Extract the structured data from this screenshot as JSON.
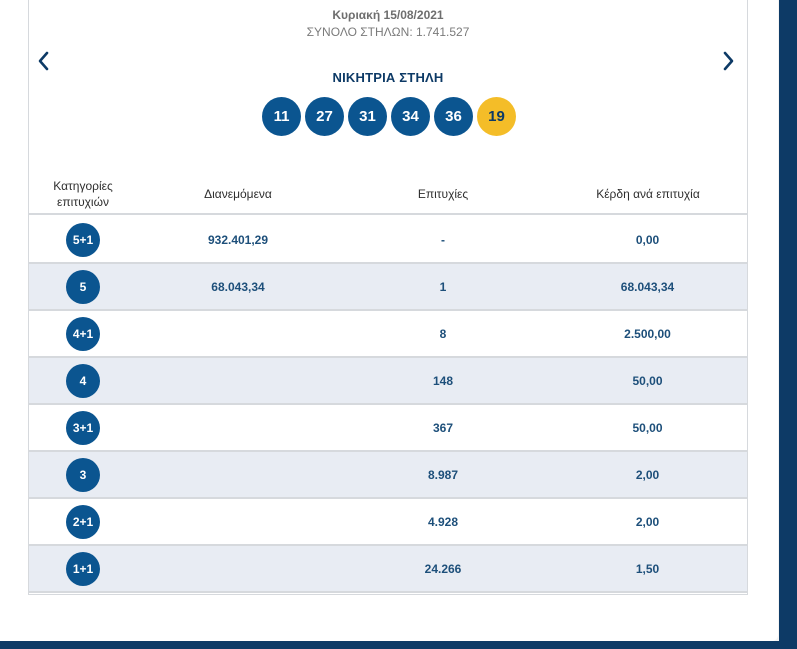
{
  "header": {
    "draw_date": "Κυριακή 15/08/2021",
    "total_columns": "ΣΥΝΟΛΟ ΣΤΗΛΩΝ: 1.741.527",
    "winning_title": "ΝΙΚΗΤΡΙΑ ΣΤΗΛΗ"
  },
  "winning_numbers": [
    "11",
    "27",
    "31",
    "34",
    "36"
  ],
  "bonus_number": "19",
  "table": {
    "headers": {
      "category": "Κατηγορίες επιτυχιών",
      "distributed": "Διανεμόμενα",
      "winners": "Επιτυχίες",
      "prize_per_winner": "Κέρδη ανά επιτυχία"
    },
    "rows": [
      {
        "category": "5+1",
        "distributed": "932.401,29",
        "winners": "-",
        "prize": "0,00"
      },
      {
        "category": "5",
        "distributed": "68.043,34",
        "winners": "1",
        "prize": "68.043,34"
      },
      {
        "category": "4+1",
        "distributed": "",
        "winners": "8",
        "prize": "2.500,00"
      },
      {
        "category": "4",
        "distributed": "",
        "winners": "148",
        "prize": "50,00"
      },
      {
        "category": "3+1",
        "distributed": "",
        "winners": "367",
        "prize": "50,00"
      },
      {
        "category": "3",
        "distributed": "",
        "winners": "8.987",
        "prize": "2,00"
      },
      {
        "category": "2+1",
        "distributed": "",
        "winners": "4.928",
        "prize": "2,00"
      },
      {
        "category": "1+1",
        "distributed": "",
        "winners": "24.266",
        "prize": "1,50"
      }
    ]
  },
  "icons": {
    "prev": "chevron-left-icon",
    "next": "chevron-right-icon"
  },
  "colors": {
    "primary": "#0b5590",
    "bonus": "#f4bd28",
    "row_alt": "#e8ecf3"
  }
}
